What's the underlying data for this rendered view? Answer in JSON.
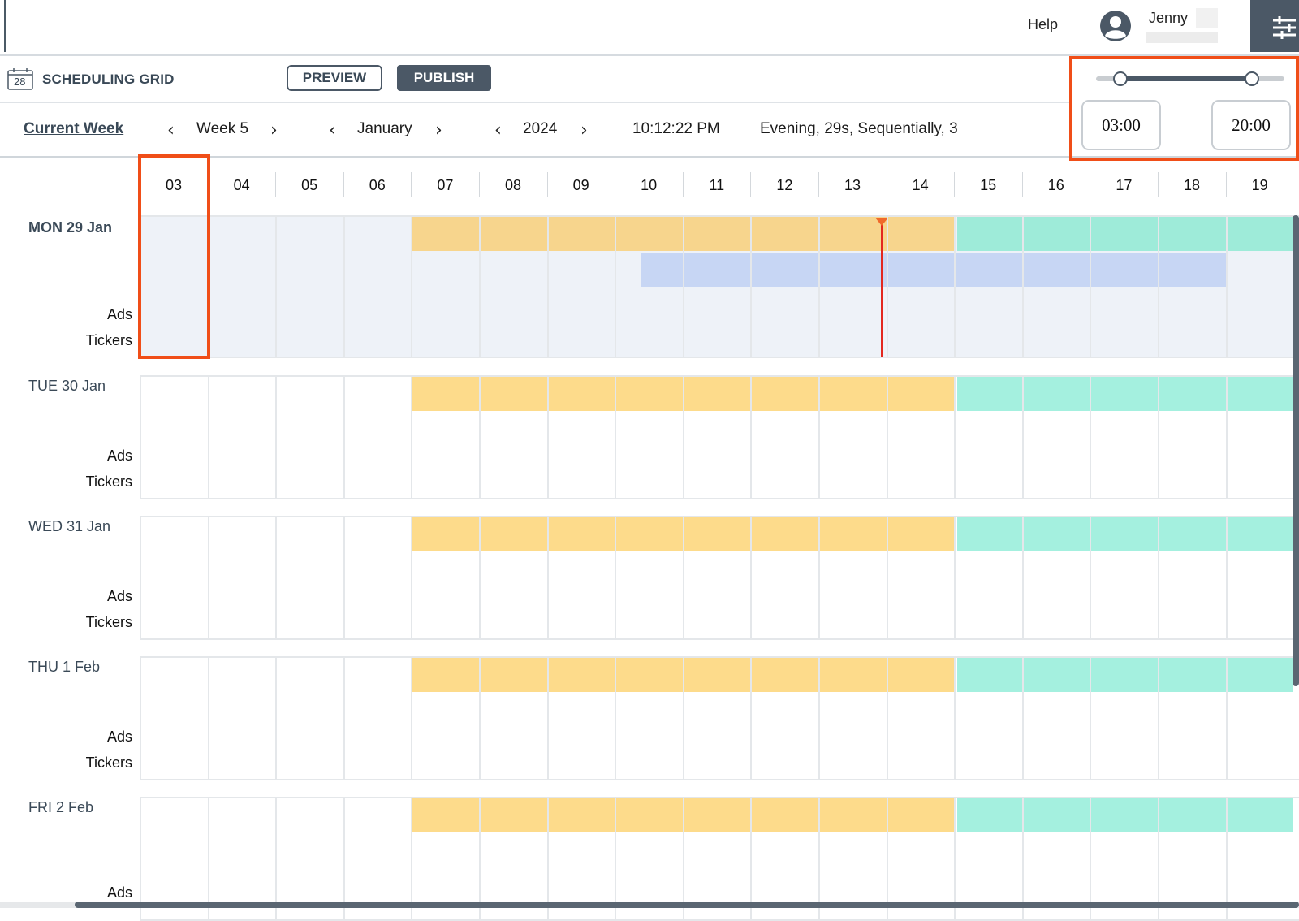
{
  "header": {
    "help_label": "Help",
    "user_name": "Jenny",
    "settings_icon": "sliders-icon",
    "avatar_icon": "user-avatar-icon"
  },
  "toolbar": {
    "calendar_day": "28",
    "title": "SCHEDULING GRID",
    "preview_label": "PREVIEW",
    "publish_label": "PUBLISH"
  },
  "nav": {
    "current_week_label": "Current Week",
    "week": "Week 5",
    "month": "January",
    "year": "2024",
    "time": "10:12:22 PM",
    "summary": "Evening, 29s, Sequentially, 3"
  },
  "time_range": {
    "start": "03:00",
    "end": "20:00"
  },
  "hours": [
    "03",
    "04",
    "05",
    "06",
    "07",
    "08",
    "09",
    "10",
    "11",
    "12",
    "13",
    "14",
    "15",
    "16",
    "17",
    "18",
    "19"
  ],
  "days": [
    {
      "label": "MON 29 Jan",
      "today": true
    },
    {
      "label": "TUE 30 Jan",
      "today": false
    },
    {
      "label": "WED 31 Jan",
      "today": false
    },
    {
      "label": "THU 1 Feb",
      "today": false
    },
    {
      "label": "FRI 2 Feb",
      "today": false
    }
  ],
  "row_labels": {
    "ads": "Ads",
    "tickers": "Tickers"
  },
  "colors": {
    "accent": "#4b5866",
    "highlight": "#f04e18",
    "yellow_block": "#fddb8b",
    "teal_block": "#a4f0df",
    "blue_block": "#c7d6f4",
    "now_indicator": "#e3281f"
  }
}
